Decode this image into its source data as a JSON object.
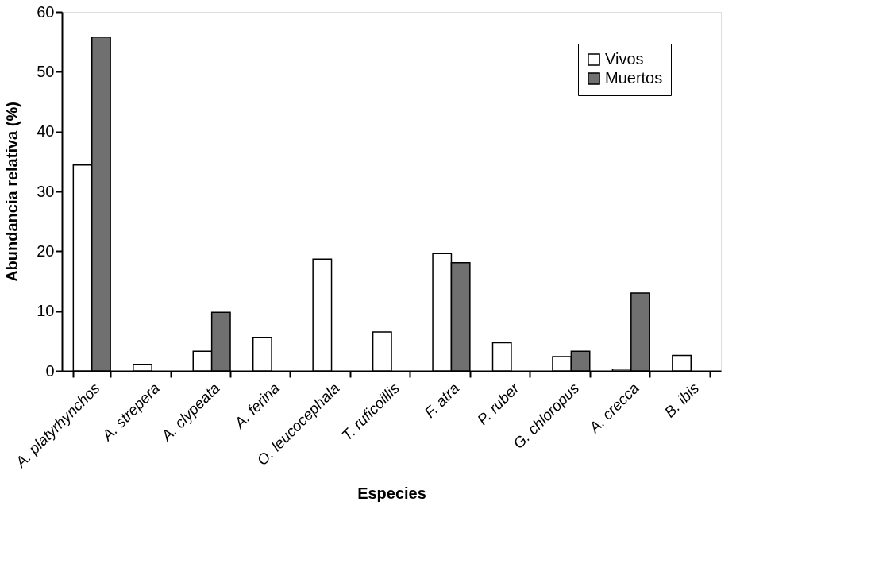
{
  "chart_data": {
    "type": "bar",
    "xlabel": "Especies",
    "ylabel": "Abundancia relativa (%)",
    "categories": [
      "A. platyrhynchos",
      "A. strepera",
      "A. clypeata",
      "A. ferina",
      "O. leucocephala",
      "T. ruficoillis",
      "F. atra",
      "P. ruber",
      "G. chloropus",
      "A. crecca",
      "B. ibis"
    ],
    "series": [
      {
        "name": "Vivos",
        "color": "#ffffff",
        "values": [
          34.4,
          1.1,
          3.3,
          5.6,
          18.7,
          6.5,
          19.6,
          4.7,
          2.4,
          0.3,
          2.6
        ]
      },
      {
        "name": "Muertos",
        "color": "#707070",
        "values": [
          55.8,
          null,
          9.8,
          null,
          null,
          null,
          18.1,
          null,
          3.3,
          13.0,
          null
        ]
      }
    ],
    "ylim": [
      0,
      60
    ],
    "yticks": [
      0,
      10,
      20,
      30,
      40,
      50,
      60
    ],
    "grid": false,
    "legend": "top right"
  }
}
